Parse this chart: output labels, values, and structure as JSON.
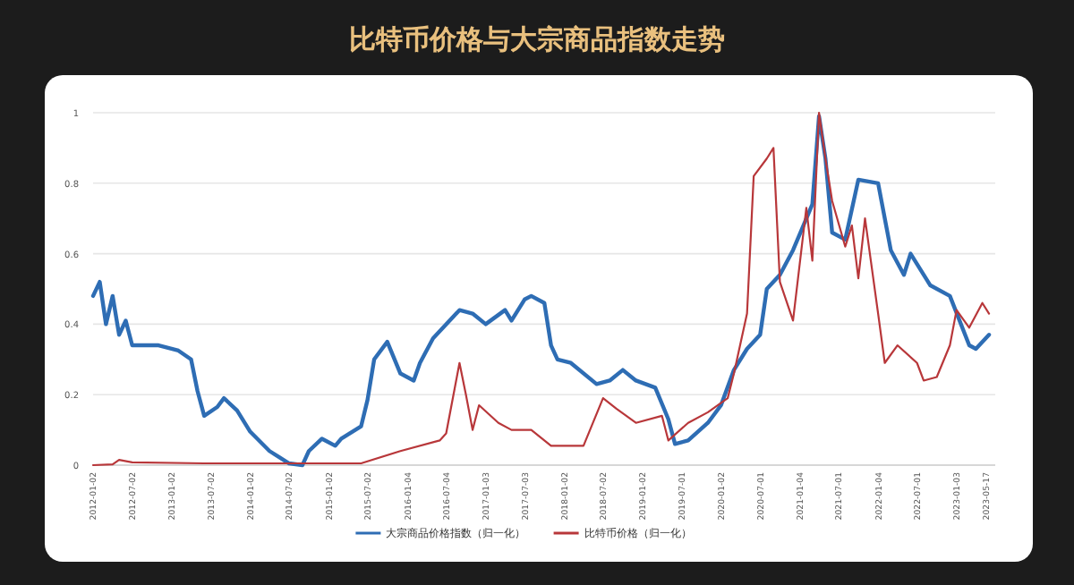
{
  "chart_data": {
    "type": "line",
    "title": "比特币价格与大宗商品指数走势",
    "xlim": [
      "2012-01-01",
      "2023-06-30"
    ],
    "ylim": [
      0,
      1
    ],
    "yticks": [
      0,
      {
        "value": 0.2,
        "label": "0.2"
      },
      {
        "value": 0.4,
        "label": "0.4"
      },
      {
        "value": 0.6,
        "label": "0.6"
      },
      {
        "value": 0.8,
        "label": "0.8"
      },
      1
    ],
    "xticks": [
      {
        "value": "2012-01-02",
        "label": "2012-01-02"
      },
      {
        "value": "2012-07-02",
        "label": "2012-07-02"
      },
      {
        "value": "2013-01-02",
        "label": "2013-01-02"
      },
      {
        "value": "2013-07-02",
        "label": "2013-07-02"
      },
      {
        "value": "2014-01-02",
        "label": "2014-01-02"
      },
      {
        "value": "2014-07-02",
        "label": "2014-07-02"
      },
      {
        "value": "2015-01-02",
        "label": "2015-01-02"
      },
      {
        "value": "2015-07-02",
        "label": "2015-07-02"
      },
      {
        "value": "2016-01-04",
        "label": "2016-01-04"
      },
      {
        "value": "2016-07-04",
        "label": "2016-07-04"
      },
      {
        "value": "2017-01-03",
        "label": "2017-01-03"
      },
      {
        "value": "2017-07-03",
        "label": "2017-07-03"
      },
      {
        "value": "2018-01-02",
        "label": "2018-01-02"
      },
      {
        "value": "2018-07-02",
        "label": "2018-07-02"
      },
      {
        "value": "2019-01-02",
        "label": "2019-01-02"
      },
      {
        "value": "2019-07-01",
        "label": "2019-07-01"
      },
      {
        "value": "2020-01-02",
        "label": "2020-01-02"
      },
      {
        "value": "2020-07-01",
        "label": "2020-07-01"
      },
      {
        "value": "2021-01-04",
        "label": "2021-01-04"
      },
      {
        "value": "2021-07-01",
        "label": "2021-07-01"
      },
      {
        "value": "2022-01-04",
        "label": "2022-01-04"
      },
      {
        "value": "2022-07-01",
        "label": "2022-07-01"
      },
      {
        "value": "2023-01-03",
        "label": "2023-01-03"
      },
      {
        "value": "2023-05-17",
        "label": "2023-05-17"
      }
    ],
    "grid": "y",
    "legend": "bottom",
    "marker": "none",
    "line_style": "solid",
    "series": [
      {
        "name": "大宗商品价格指数（归一化）",
        "color": "#2e6db4",
        "x": [
          "2012-01",
          "2012-02",
          "2012-03",
          "2012-04",
          "2012-05",
          "2012-06",
          "2012-07",
          "2012-11",
          "2013-02",
          "2013-04",
          "2013-05",
          "2013-06",
          "2013-08",
          "2013-09",
          "2013-11",
          "2014-01",
          "2014-04",
          "2014-07",
          "2014-09",
          "2014-10",
          "2014-12",
          "2015-02",
          "2015-03",
          "2015-06",
          "2015-07",
          "2015-08",
          "2015-10",
          "2015-12",
          "2016-02",
          "2016-03",
          "2016-05",
          "2016-09",
          "2016-11",
          "2017-01",
          "2017-04",
          "2017-05",
          "2017-07",
          "2017-08",
          "2017-10",
          "2017-11",
          "2017-12",
          "2018-02",
          "2018-06",
          "2018-08",
          "2018-10",
          "2018-12",
          "2019-03",
          "2019-05",
          "2019-06",
          "2019-08",
          "2019-11",
          "2020-01",
          "2020-03",
          "2020-05",
          "2020-07",
          "2020-08",
          "2020-10",
          "2020-12",
          "2021-03",
          "2021-04",
          "2021-05",
          "2021-06",
          "2021-08",
          "2021-10",
          "2022-01",
          "2022-03",
          "2022-05",
          "2022-06",
          "2022-09",
          "2022-12",
          "2023-03",
          "2023-04",
          "2023-06"
        ],
        "values": [
          0.48,
          0.52,
          0.4,
          0.48,
          0.37,
          0.41,
          0.34,
          0.34,
          0.325,
          0.3,
          0.21,
          0.14,
          0.165,
          0.19,
          0.155,
          0.095,
          0.04,
          0.005,
          0,
          0.04,
          0.075,
          0.055,
          0.075,
          0.11,
          0.185,
          0.3,
          0.35,
          0.26,
          0.24,
          0.29,
          0.36,
          0.44,
          0.43,
          0.4,
          0.44,
          0.41,
          0.47,
          0.48,
          0.46,
          0.34,
          0.3,
          0.29,
          0.23,
          0.24,
          0.27,
          0.24,
          0.22,
          0.13,
          0.06,
          0.07,
          0.12,
          0.17,
          0.27,
          0.33,
          0.37,
          0.5,
          0.54,
          0.61,
          0.74,
          0.99,
          0.87,
          0.66,
          0.64,
          0.81,
          0.8,
          0.61,
          0.54,
          0.6,
          0.51,
          0.48,
          0.34,
          0.33,
          0.37
        ]
      },
      {
        "name": "比特币价格（归一化）",
        "color": "#b8373a",
        "x": [
          "2012-01",
          "2012-04",
          "2012-05",
          "2012-07",
          "2013-06",
          "2015-06",
          "2015-12",
          "2016-06",
          "2016-07",
          "2016-09",
          "2016-10",
          "2016-11",
          "2016-12",
          "2017-03",
          "2017-05",
          "2017-08",
          "2017-11",
          "2018-04",
          "2018-07",
          "2018-09",
          "2018-12",
          "2019-04",
          "2019-05",
          "2019-08",
          "2019-11",
          "2020-02",
          "2020-03",
          "2020-05",
          "2020-06",
          "2020-08",
          "2020-09",
          "2020-10",
          "2020-12",
          "2021-02",
          "2021-03",
          "2021-04",
          "2021-05",
          "2021-06",
          "2021-08",
          "2021-09",
          "2021-10",
          "2021-11",
          "2022-01",
          "2022-02",
          "2022-04",
          "2022-07",
          "2022-08",
          "2022-10",
          "2022-12",
          "2023-01",
          "2023-03",
          "2023-05",
          "2023-06"
        ],
        "values": [
          0,
          0.002,
          0.015,
          0.008,
          0.005,
          0.005,
          0.04,
          0.07,
          0.09,
          0.29,
          0.2,
          0.1,
          0.17,
          0.12,
          0.1,
          0.1,
          0.055,
          0.055,
          0.19,
          0.16,
          0.12,
          0.14,
          0.07,
          0.12,
          0.15,
          0.19,
          0.26,
          0.43,
          0.82,
          0.87,
          0.9,
          0.52,
          0.41,
          0.73,
          0.58,
          1,
          0.87,
          0.75,
          0.62,
          0.68,
          0.53,
          0.7,
          0.43,
          0.29,
          0.34,
          0.29,
          0.24,
          0.25,
          0.34,
          0.44,
          0.39,
          0.46,
          0.43
        ]
      }
    ]
  }
}
